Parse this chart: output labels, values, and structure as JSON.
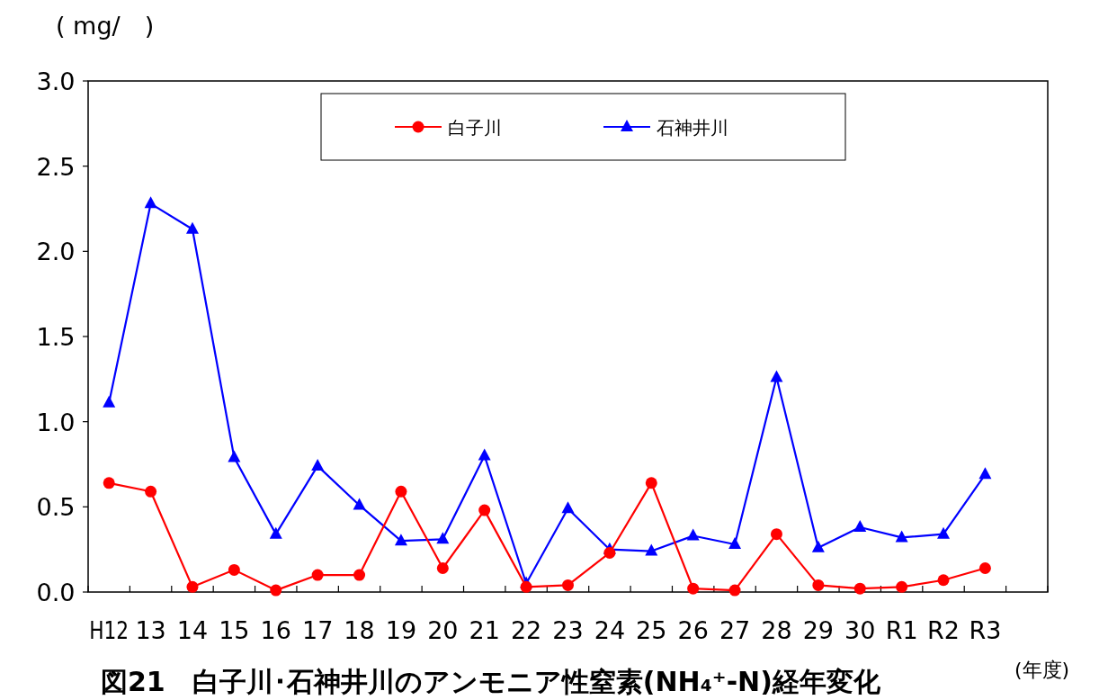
{
  "chart_data": {
    "type": "line",
    "title": "図21　白子川･石神井川のアンモニア性窒素(NH₄⁺-N)経年変化",
    "ylabel": "( mg/　)",
    "annotations": [
      "(年度)"
    ],
    "categories": [
      "H12",
      "13",
      "14",
      "15",
      "16",
      "17",
      "18",
      "19",
      "20",
      "21",
      "22",
      "23",
      "24",
      "25",
      "26",
      "27",
      "28",
      "29",
      "30",
      "R1",
      "R2",
      "R3"
    ],
    "series": [
      {
        "name": "白子川",
        "color": "#ff0000",
        "marker": "circle",
        "values": [
          0.64,
          0.59,
          0.03,
          0.13,
          0.01,
          0.1,
          0.1,
          0.59,
          0.14,
          0.48,
          0.03,
          0.04,
          0.23,
          0.64,
          0.02,
          0.01,
          0.34,
          0.04,
          0.02,
          0.03,
          0.07,
          0.14
        ]
      },
      {
        "name": "石神井川",
        "color": "#0000ff",
        "marker": "triangle",
        "values": [
          1.11,
          2.28,
          2.13,
          0.79,
          0.34,
          0.74,
          0.51,
          0.3,
          0.31,
          0.8,
          0.05,
          0.49,
          0.25,
          0.24,
          0.33,
          0.28,
          1.26,
          0.26,
          0.38,
          0.32,
          0.34,
          0.69
        ]
      }
    ],
    "ylim": [
      0,
      3
    ],
    "yticks": [
      {
        "value": 0,
        "label": "0.0"
      },
      {
        "value": 0.5,
        "label": "0.5"
      },
      {
        "value": 1,
        "label": "1.0"
      },
      {
        "value": 1.5,
        "label": "1.5"
      },
      {
        "value": 2,
        "label": "2.0"
      },
      {
        "value": 2.5,
        "label": "2.5"
      },
      {
        "value": 3,
        "label": "3.0"
      }
    ],
    "grid": false,
    "legend": "top"
  }
}
